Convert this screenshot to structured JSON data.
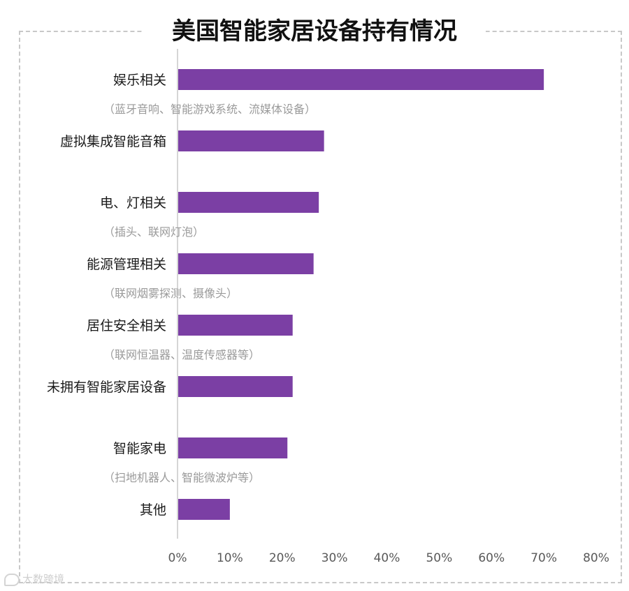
{
  "title": "美国智能家居设备持有情况",
  "watermark": "大数跨境",
  "colors": {
    "bar": "#7b3fa4",
    "label": "#1a1a1a",
    "sublabel": "#9a9a9a",
    "axis": "#c8c8c8",
    "tick": "#595959"
  },
  "chart_data": {
    "type": "bar",
    "orientation": "horizontal",
    "categories": [
      "娱乐相关",
      "虚拟集成智能音箱",
      "电、灯相关",
      "能源管理相关",
      "居住安全相关",
      "未拥有智能家居设备",
      "智能家电",
      "其他"
    ],
    "annotations": [
      "（蓝牙音响、智能游戏系统、流媒体设备）",
      "",
      "（插头、联网灯泡）",
      "（联网烟雾探测、摄像头）",
      "（联网恒温器、温度传感器等）",
      "",
      "（扫地机器人、智能微波炉等）",
      ""
    ],
    "values": [
      70,
      28,
      27,
      26,
      22,
      22,
      21,
      10
    ],
    "xlim": [
      0,
      80
    ],
    "xticks": [
      "0%",
      "10%",
      "20%",
      "30%",
      "40%",
      "50%",
      "60%",
      "70%",
      "80%"
    ],
    "xlabel": "",
    "ylabel": "",
    "grid": false,
    "legend": "none"
  }
}
